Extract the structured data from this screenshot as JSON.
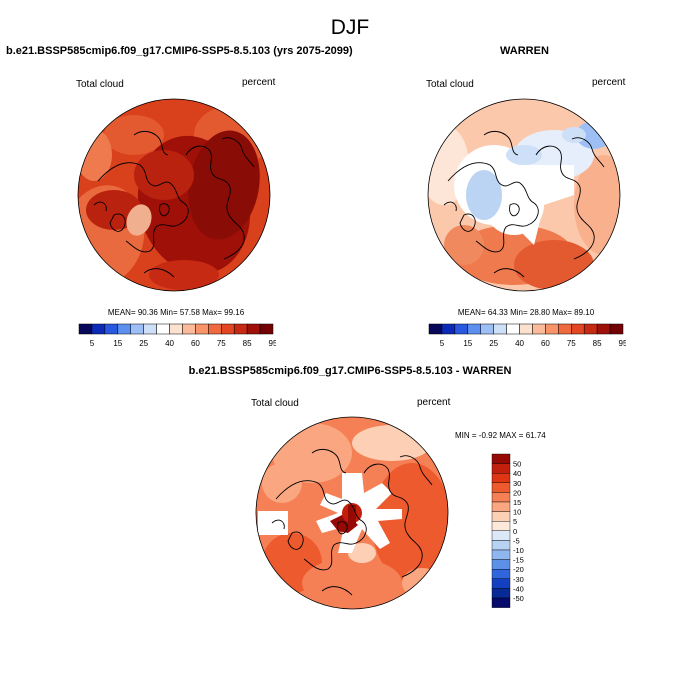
{
  "figure_title": "DJF",
  "panels": [
    {
      "title": "b.e21.BSSP585cmip6.f09_g17.CMIP6-SSP5-8.5.103 (yrs 2075-2099)",
      "left_label": "Total cloud",
      "right_label": "percent",
      "stats": "MEAN= 90.36  Min= 57.58  Max= 99.16",
      "field": "model"
    },
    {
      "title": "WARREN",
      "left_label": "Total cloud",
      "right_label": "percent",
      "stats": "MEAN= 64.33  Min= 28.80  Max= 89.10",
      "field": "obs"
    },
    {
      "title": "b.e21.BSSP585cmip6.f09_g17.CMIP6-SSP5-8.5.103 - WARREN",
      "left_label": "Total cloud",
      "right_label": "percent",
      "stats": "MIN =  -0.92 MAX =  61.74",
      "field": "diff"
    }
  ],
  "colorbar_horizontal": {
    "tick_labels": [
      "5",
      "15",
      "25",
      "40",
      "60",
      "75",
      "85",
      "95"
    ],
    "colors": [
      "#08085a",
      "#0c2ab8",
      "#2858e0",
      "#5d8ff0",
      "#9dbff5",
      "#cde0f8",
      "#ffffff",
      "#fde1cf",
      "#fbbb9b",
      "#f79469",
      "#ef6a3e",
      "#e34622",
      "#c72a12",
      "#9e1008",
      "#720004"
    ]
  },
  "colorbar_vertical": {
    "tick_labels": [
      "50",
      "40",
      "30",
      "20",
      "15",
      "10",
      "5",
      "0",
      "-5",
      "-10",
      "-15",
      "-20",
      "-30",
      "-40",
      "-50"
    ],
    "colors": [
      "#960a05",
      "#c21f0c",
      "#de3614",
      "#ed5a2e",
      "#f68056",
      "#faa680",
      "#fdd0b6",
      "#fde9dc",
      "#dbe8f8",
      "#b8d2f4",
      "#8fb6ef",
      "#5d91e8",
      "#2f66dc",
      "#1240c0",
      "#082a96",
      "#060a6a"
    ]
  }
}
